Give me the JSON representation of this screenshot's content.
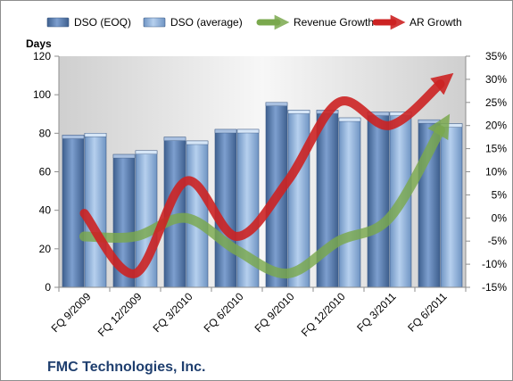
{
  "chart_data": {
    "type": "bar",
    "title": "",
    "company": "FMC Technologies, Inc.",
    "ylabel": "Days",
    "ylim": [
      0,
      120
    ],
    "yticks": [
      "0",
      "20",
      "40",
      "60",
      "80",
      "100",
      "120"
    ],
    "y2lim": [
      -15,
      35
    ],
    "y2ticks": [
      "-15%",
      "-10%",
      "-5%",
      "0%",
      "5%",
      "10%",
      "15%",
      "20%",
      "25%",
      "30%",
      "35%"
    ],
    "categories": [
      "FQ 9/2009",
      "FQ 12/2009",
      "FQ 3/2010",
      "FQ 6/2010",
      "FQ 9/2010",
      "FQ 12/2010",
      "FQ 3/2011",
      "FQ 6/2011"
    ],
    "series": [
      {
        "name": "DSO (EOQ)",
        "kind": "bar",
        "axis": "left",
        "color": "#5d7fae",
        "values": [
          79,
          69,
          78,
          82,
          96,
          92,
          91,
          87
        ]
      },
      {
        "name": "DSO (average)",
        "kind": "bar",
        "axis": "left",
        "color": "#8fb2dc",
        "values": [
          80,
          71,
          76,
          82,
          92,
          88,
          91,
          85
        ]
      },
      {
        "name": "Revenue Growth",
        "kind": "line",
        "axis": "right",
        "color": "#7aa84d",
        "values": [
          -4,
          -4,
          0,
          -7,
          -12,
          -5,
          0,
          19
        ]
      },
      {
        "name": "AR Growth",
        "kind": "line",
        "axis": "right",
        "color": "#cc2222",
        "values": [
          1,
          -12,
          8,
          -4,
          8,
          25,
          20,
          29
        ]
      }
    ],
    "grid": false,
    "legend_position": "top"
  }
}
